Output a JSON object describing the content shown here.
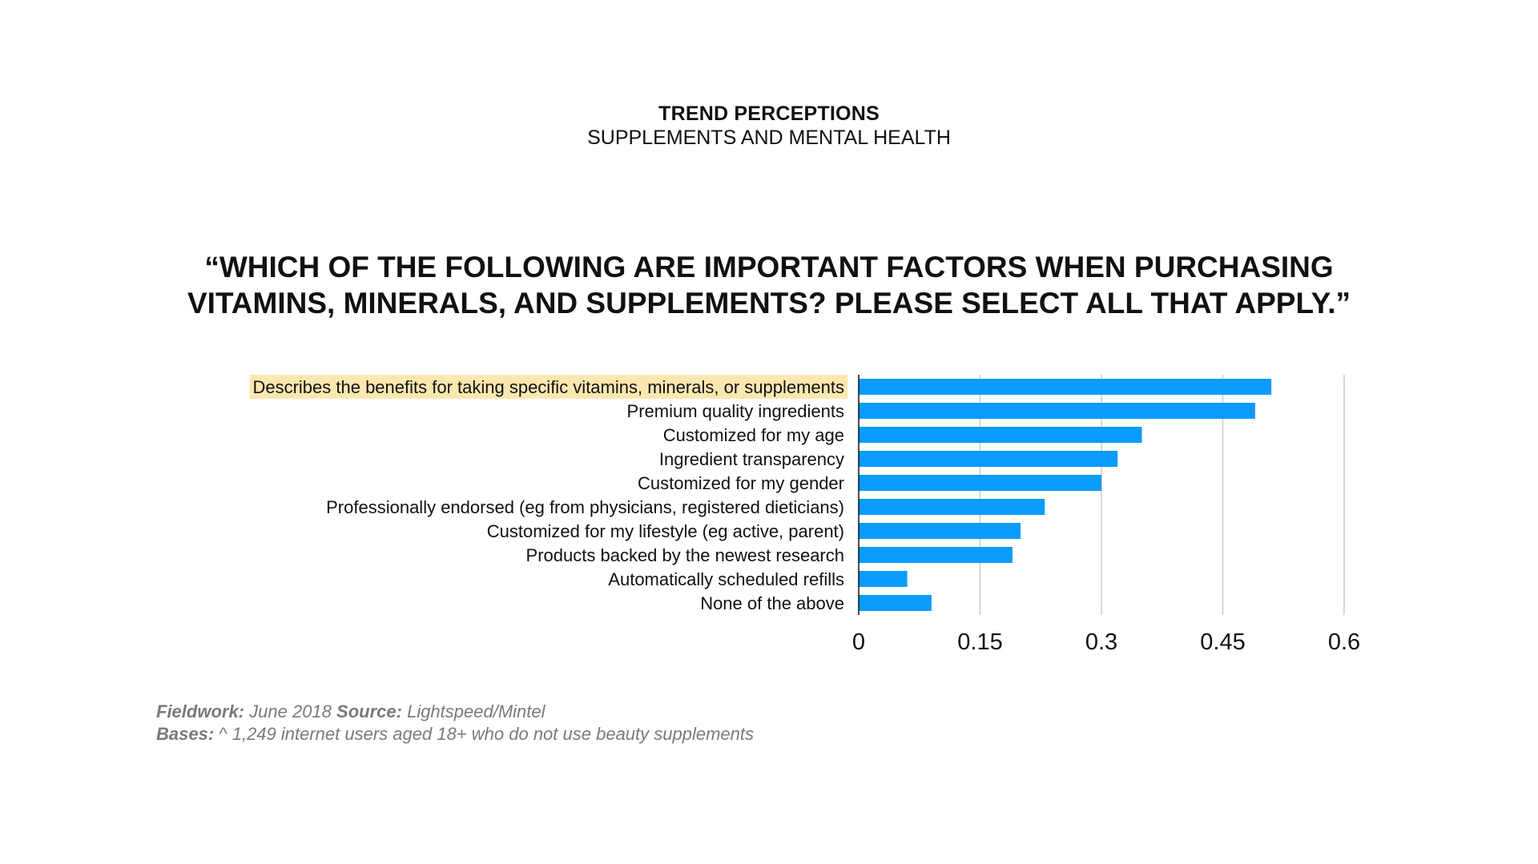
{
  "header": {
    "title": "TREND PERCEPTIONS",
    "subtitle": "SUPPLEMENTS AND MENTAL HEALTH"
  },
  "question": {
    "line1": "“WHICH OF THE FOLLOWING ARE IMPORTANT FACTORS WHEN PURCHASING",
    "line2": "VITAMINS, MINERALS, AND SUPPLEMENTS? PLEASE SELECT ALL THAT APPLY.”"
  },
  "chart_data": {
    "type": "bar",
    "orientation": "horizontal",
    "categories": [
      "Describes the benefits for taking specific vitamins, minerals, or supplements",
      "Premium quality ingredients",
      "Customized for my age",
      "Ingredient transparency",
      "Customized for my gender",
      "Professionally endorsed (eg from physicians, registered dieticians)",
      "Customized for my lifestyle (eg active, parent)",
      "Products backed by the newest research",
      "Automatically scheduled refills",
      "None of the above"
    ],
    "values": [
      0.51,
      0.49,
      0.35,
      0.32,
      0.3,
      0.23,
      0.2,
      0.19,
      0.06,
      0.09
    ],
    "xlim": [
      0,
      0.6
    ],
    "xticks": [
      "0",
      "0.15",
      "0.3",
      "0.45",
      "0.6"
    ],
    "grid": true,
    "highlighted_category_index": 0,
    "colors": {
      "bar": "#0a9cff",
      "highlight": "#fbe7b0",
      "grid": "#cccccc",
      "axis": "#111111"
    }
  },
  "footer": {
    "fieldwork_label": "Fieldwork:",
    "fieldwork_value": "June 2018",
    "source_label": "Source:",
    "source_value": "Lightspeed/Mintel",
    "bases_label": "Bases:",
    "bases_value": "^ 1,249 internet users aged 18+ who do not use beauty supplements"
  }
}
